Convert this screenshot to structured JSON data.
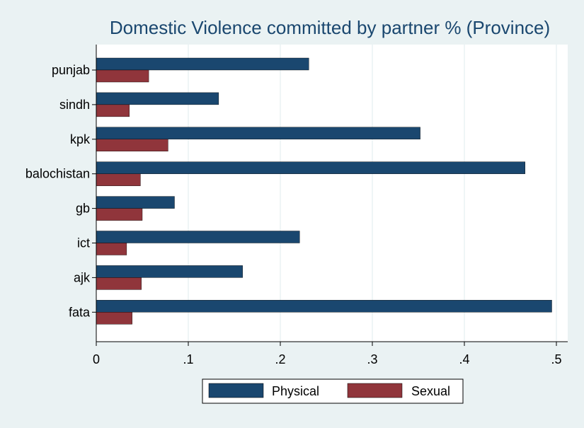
{
  "chart_data": {
    "type": "bar",
    "orientation": "horizontal",
    "title": "Domestic Violence committed by partner % (Province)",
    "categories": [
      "punjab",
      "sindh",
      "kpk",
      "balochistan",
      "gb",
      "ict",
      "ajk",
      "fata"
    ],
    "series": [
      {
        "name": "Physical",
        "color": "#1a476f",
        "values": [
          0.231,
          0.133,
          0.352,
          0.466,
          0.085,
          0.221,
          0.159,
          0.495
        ]
      },
      {
        "name": "Sexual",
        "color": "#90353b",
        "values": [
          0.057,
          0.036,
          0.078,
          0.048,
          0.05,
          0.033,
          0.049,
          0.039
        ]
      }
    ],
    "xticks": [
      0,
      0.1,
      0.2,
      0.3,
      0.4,
      0.5
    ],
    "xtick_labels": [
      "0",
      ".1",
      ".2",
      ".3",
      ".4",
      ".5"
    ],
    "xlim": [
      0,
      0.5
    ],
    "grid": true,
    "legend_position": "bottom"
  },
  "colors": {
    "background": "#eaf2f3",
    "plot_background": "#ffffff",
    "title": "#1a476f",
    "grid": "#eaf2f3"
  }
}
